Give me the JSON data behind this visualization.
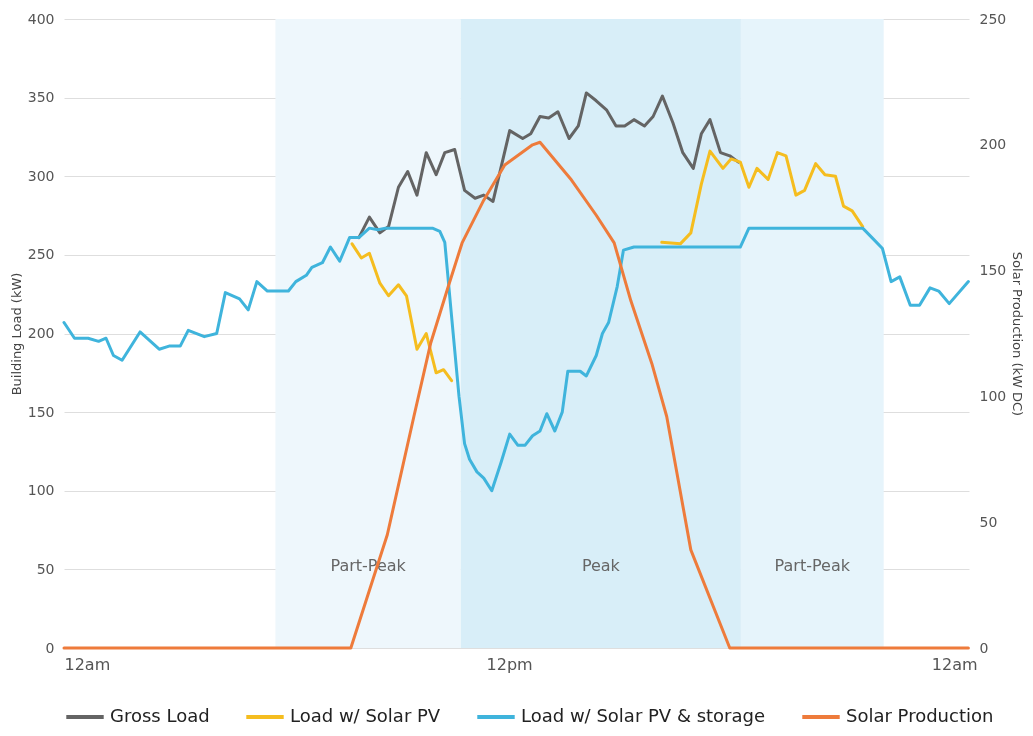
{
  "chart_data": {
    "type": "line",
    "ylabel": "Building Load (kW)",
    "y2label": "Solar Production (kW DC)",
    "xlim": [
      "--01-01T00:00",
      "--01-02T00:24"
    ],
    "xticks": [
      {
        "value": "--01-01T00:00",
        "label": "12am"
      },
      {
        "value": "--01-01T12:00",
        "label": "12pm"
      },
      {
        "value": "--01-02T00:00",
        "label": "12am"
      }
    ],
    "ylim": [
      0,
      400
    ],
    "yticks": [
      0,
      50,
      100,
      150,
      200,
      250,
      300,
      350,
      400
    ],
    "y2lim": [
      0,
      250
    ],
    "y2ticks": [
      0,
      50,
      100,
      150,
      200,
      250
    ],
    "grid": "y",
    "legend": "bottom",
    "bands": [
      {
        "axis": "x",
        "from": "--01-01T05:42",
        "to": "--01-01T10:42",
        "label": "Part-Peak",
        "color": "#eef7fc"
      },
      {
        "axis": "x",
        "from": "--01-01T10:42",
        "to": "--01-01T18:15",
        "label": "Peak",
        "color": "#d8eef8"
      },
      {
        "axis": "x",
        "from": "--01-01T18:15",
        "to": "--01-01T22:06",
        "label": "Part-Peak",
        "color": "#e6f4fb"
      }
    ],
    "series": [
      {
        "name": "Gross Load",
        "color": "#646464",
        "x": [
          "--01-01T07:57",
          "--01-01T08:14",
          "--01-01T08:31",
          "--01-01T08:45",
          "--01-01T09:01",
          "--01-01T09:16",
          "--01-01T09:31",
          "--01-01T09:46",
          "--01-01T10:02",
          "--01-01T10:16",
          "--01-01T10:32",
          "--01-01T10:48",
          "--01-01T11:05",
          "--01-01T11:19",
          "--01-01T11:34",
          "--01-01T12:01",
          "--01-01T12:22",
          "--01-01T12:35",
          "--01-01T12:50",
          "--01-01T13:04",
          "--01-01T13:19",
          "--01-01T13:37",
          "--01-01T13:52",
          "--01-01T14:05",
          "--01-01T14:21",
          "--01-01T14:38",
          "--01-01T14:53",
          "--01-01T15:07",
          "--01-01T15:22",
          "--01-01T15:39",
          "--01-01T15:53",
          "--01-01T16:08",
          "--01-01T16:25",
          "--01-01T16:41",
          "--01-01T16:58",
          "--01-01T17:11",
          "--01-01T17:25",
          "--01-01T17:42",
          "--01-01T17:57",
          "--01-01T18:11"
        ],
        "values": [
          261,
          274,
          264,
          268,
          293,
          303,
          288,
          315,
          301,
          315,
          317,
          291,
          286,
          288,
          284,
          329,
          324,
          327,
          338,
          337,
          341,
          324,
          332,
          353,
          348,
          342,
          332,
          332,
          336,
          332,
          338,
          351,
          334,
          315,
          305,
          327,
          336,
          315,
          313,
          309
        ]
      },
      {
        "name": "Load w/ Solar PV",
        "color": "#f5bd1f",
        "x": [
          "--01-01T07:46",
          "--01-01T08:01",
          "--01-01T08:14",
          "--01-01T08:31",
          "--01-01T08:45",
          "--01-01T09:01",
          "--01-01T09:14",
          "--01-01T09:31",
          "--01-01T09:46",
          "--01-01T10:02",
          "--01-01T10:14",
          "--01-01T10:27",
          "--01-01T10:36",
          "--01-01T16:07",
          "--01-01T16:37",
          "--01-01T16:54",
          "--01-01T17:11",
          "--01-01T17:25",
          "--01-01T17:46",
          "--01-01T17:59",
          "--01-01T18:14",
          "--01-01T18:28",
          "--01-01T18:41",
          "--01-01T18:59",
          "--01-01T19:14",
          "--01-01T19:28",
          "--01-01T19:44",
          "--01-01T19:58",
          "--01-01T20:16",
          "--01-01T20:31",
          "--01-01T20:48",
          "--01-01T21:01",
          "--01-01T21:15",
          "--01-01T21:32"
        ],
        "values": [
          257,
          248,
          251,
          232,
          224,
          231,
          224,
          190,
          200,
          175,
          177,
          170,
          null,
          258,
          257,
          264,
          295,
          316,
          305,
          311,
          309,
          293,
          305,
          298,
          315,
          313,
          288,
          291,
          308,
          301,
          300,
          281,
          278,
          268
        ]
      },
      {
        "name": "Load w/ Solar PV & storage",
        "color": "#3fb4dc",
        "x": [
          "--01-01T00:00",
          "--01-01T00:17",
          "--01-01T00:39",
          "--01-01T00:56",
          "--01-01T01:08",
          "--01-01T01:20",
          "--01-01T01:34",
          "--01-01T02:03",
          "--01-01T02:34",
          "--01-01T02:50",
          "--01-01T03:08",
          "--01-01T03:21",
          "--01-01T03:47",
          "--01-01T04:07",
          "--01-01T04:21",
          "--01-01T04:44",
          "--01-01T04:58",
          "--01-01T05:12",
          "--01-01T05:29",
          "--01-01T05:49",
          "--01-01T06:03",
          "--01-01T06:15",
          "--01-01T06:32",
          "--01-01T06:41",
          "--01-01T06:58",
          "--01-01T07:11",
          "--01-01T07:26",
          "--01-01T07:42",
          "--01-01T07:57",
          "--01-01T08:14",
          "--01-01T08:28",
          "--01-01T08:40",
          "--01-01T09:56",
          "--01-01T10:08",
          "--01-01T10:16",
          "--01-01T10:26",
          "--01-01T10:39",
          "--01-01T10:48",
          "--01-01T10:56",
          "--01-01T11:08",
          "--01-01T11:19",
          "--01-01T11:32",
          "--01-01T11:47",
          "--01-01T12:01",
          "--01-01T12:14",
          "--01-01T12:26",
          "--01-01T12:38",
          "--01-01T12:50",
          "--01-01T13:01",
          "--01-01T13:14",
          "--01-01T13:26",
          "--01-01T13:35",
          "--01-01T13:55",
          "--01-01T14:05",
          "--01-01T14:21",
          "--01-01T14:31",
          "--01-01T14:41",
          "--01-01T14:55",
          "--01-01T15:05",
          "--01-01T15:22",
          "--01-01T18:14",
          "--01-01T18:28",
          "--01-01T21:32",
          "--01-01T21:47",
          "--01-01T22:04",
          "--01-01T22:18",
          "--01-01T22:32",
          "--01-01T22:49",
          "--01-01T23:04",
          "--01-01T23:21",
          "--01-01T23:35",
          "--01-01T23:52",
          "--01-02T00:23"
        ],
        "values": [
          207,
          197,
          197,
          195,
          197,
          186,
          183,
          201,
          190,
          192,
          192,
          202,
          198,
          200,
          226,
          222,
          215,
          233,
          227,
          227,
          227,
          233,
          237,
          242,
          245,
          255,
          246,
          261,
          261,
          267,
          266,
          267,
          267,
          265,
          258,
          215,
          160,
          130,
          120,
          112,
          108,
          100,
          118,
          136,
          129,
          129,
          135,
          138,
          149,
          138,
          150,
          176,
          176,
          173,
          186,
          200,
          207,
          230,
          253,
          255,
          255,
          267,
          267,
          261,
          254,
          233,
          236,
          218,
          218,
          229,
          227,
          219,
          233
        ]
      },
      {
        "name": "Solar Production",
        "color": "#ee7b3b",
        "axis": "y2",
        "x": [
          "--01-01T00:00",
          "--01-01T07:44",
          "--01-01T08:43",
          "--01-01T09:26",
          "--01-01T09:53",
          "--01-01T10:22",
          "--01-01T10:44",
          "--01-01T11:19",
          "--01-01T11:53",
          "--01-01T12:38",
          "--01-01T12:50",
          "--01-01T13:41",
          "--01-01T14:21",
          "--01-01T14:50",
          "--01-01T15:17",
          "--01-01T15:51",
          "--01-01T16:15",
          "--01-01T16:54",
          "--01-01T17:57",
          "--01-02T00:23"
        ],
        "values": [
          0,
          0,
          45,
          92,
          121,
          144,
          161,
          178,
          192,
          200,
          201,
          186,
          172,
          161,
          138,
          113,
          92,
          39,
          0,
          0
        ]
      }
    ]
  }
}
